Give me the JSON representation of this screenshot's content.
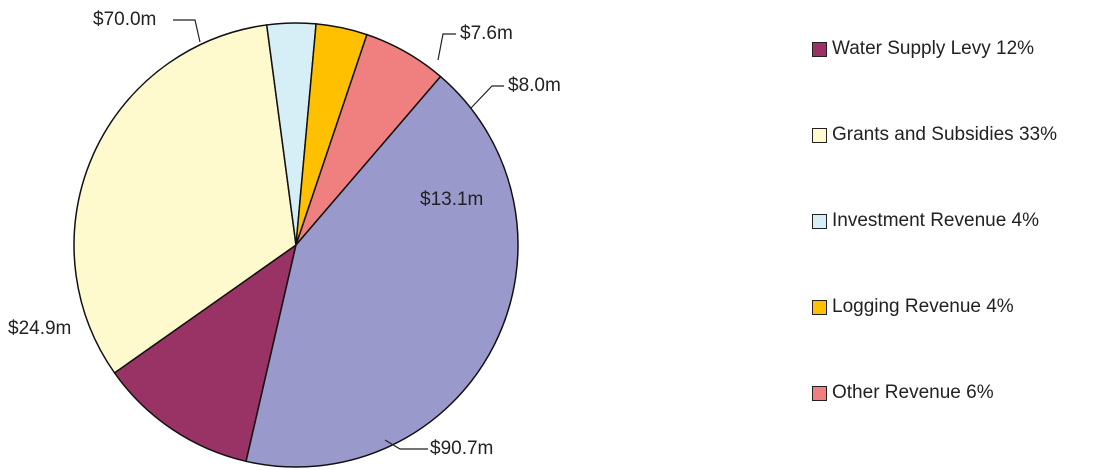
{
  "chart_data": {
    "type": "pie",
    "start_angle_deg": 103,
    "slices": [
      {
        "label": "Water Supply Levy 12%",
        "data_label": "$24.9m",
        "value": 24.9,
        "color": "#993366"
      },
      {
        "label": "Grants and Subsidies 33%",
        "data_label": "$70.0m",
        "value": 70.0,
        "color": "#FFFACD"
      },
      {
        "label": "Investment Revenue 4%",
        "data_label": "$7.6m",
        "value": 7.6,
        "color": "#D6EEF5"
      },
      {
        "label": "Logging Revenue 4%",
        "data_label": "$8.0m",
        "value": 8.0,
        "color": "#FFC000"
      },
      {
        "label": "Other Revenue 6%",
        "data_label": "$13.1m",
        "value": 13.1,
        "color": "#F08080"
      },
      {
        "label": "",
        "data_label": "$90.7m",
        "value": 90.7,
        "color": "#9999CC"
      }
    ],
    "legend": {
      "position": "right",
      "entries": [
        {
          "label": "Water Supply Levy 12%",
          "color": "#993366"
        },
        {
          "label": "Grants and Subsidies 33%",
          "color": "#FFFACD"
        },
        {
          "label": "Investment Revenue 4%",
          "color": "#D6EEF5"
        },
        {
          "label": "Logging Revenue 4%",
          "color": "#FFC000"
        },
        {
          "label": "Other Revenue 6%",
          "color": "#F08080"
        }
      ]
    }
  }
}
